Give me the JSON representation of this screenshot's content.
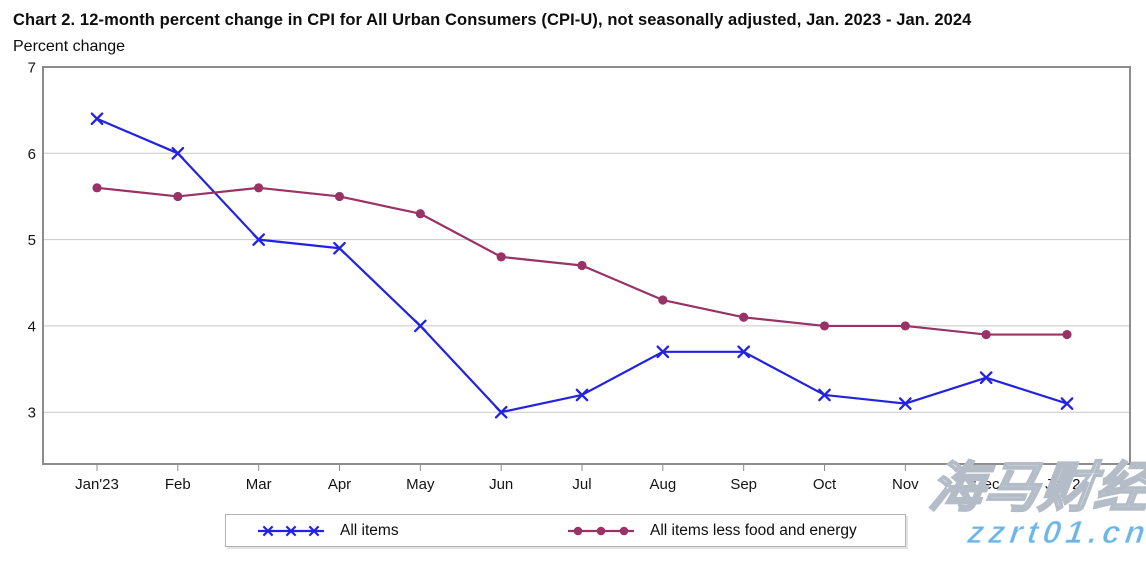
{
  "header": {
    "title": "Chart 2. 12-month percent change in CPI for All Urban Consumers (CPI-U), not seasonally adjusted, Jan. 2023 - Jan. 2024",
    "axis_unit_label": "Percent change"
  },
  "chart_data": {
    "type": "line",
    "title": "Chart 2. 12-month percent change in CPI for All Urban Consumers (CPI-U), not seasonally adjusted, Jan. 2023 - Jan. 2024",
    "ylabel": "Percent change",
    "xlabel": "",
    "categories": [
      "Jan'23",
      "Feb",
      "Mar",
      "Apr",
      "May",
      "Jun",
      "Jul",
      "Aug",
      "Sep",
      "Oct",
      "Nov",
      "Dec",
      "Jan'24"
    ],
    "series": [
      {
        "name": "All items",
        "marker": "x",
        "color": "#2222E0",
        "values": [
          6.4,
          6.0,
          5.0,
          4.9,
          4.0,
          3.0,
          3.2,
          3.7,
          3.7,
          3.2,
          3.1,
          3.4,
          3.1
        ]
      },
      {
        "name": "All items less food and energy",
        "marker": "circle",
        "color": "#993366",
        "values": [
          5.6,
          5.5,
          5.6,
          5.5,
          5.3,
          4.8,
          4.7,
          4.3,
          4.1,
          4.0,
          4.0,
          3.9,
          3.9
        ]
      }
    ],
    "ylim": [
      2.4,
      7
    ],
    "yticks": [
      3,
      4,
      5,
      6,
      7
    ],
    "grid": "horizontal",
    "gridline_color": "#C9C9C9",
    "axis_border_color": "#8C8C8C",
    "tick_color": "#8C8C8C",
    "legend_position": "bottom"
  },
  "watermark": {
    "cjk_text": "海马财经",
    "url_text": "zzrt01.cn",
    "url_color": "#6CB5E8"
  }
}
